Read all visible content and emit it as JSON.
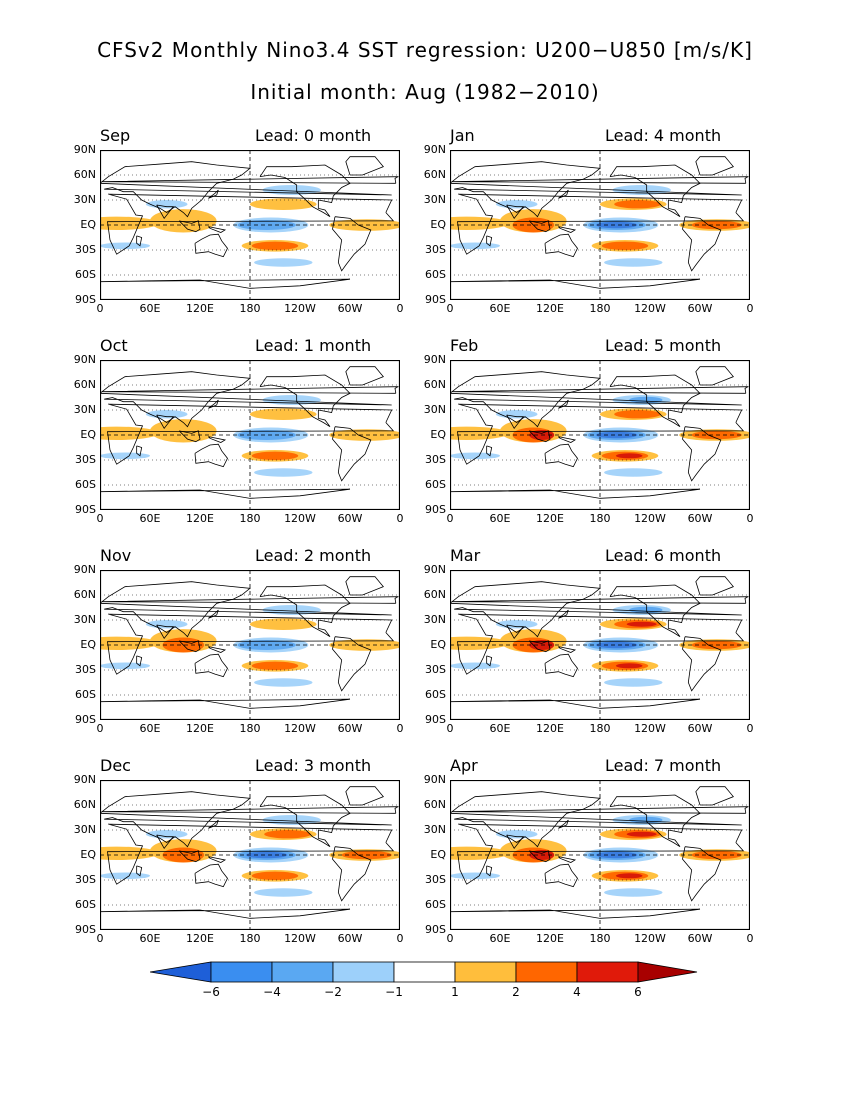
{
  "title": "CFSv2 Monthly Nino3.4 SST regression: U200−U850 [m/s/K]",
  "subtitle": "Initial month: Aug (1982−2010)",
  "lat_labels": [
    "90N",
    "60N",
    "30N",
    "EQ",
    "30S",
    "60S",
    "90S"
  ],
  "lon_labels": [
    "0",
    "60E",
    "120E",
    "180",
    "120W",
    "60W",
    "0"
  ],
  "panels": [
    {
      "month": "Sep",
      "lead": "Lead: 0 month",
      "strength": 1
    },
    {
      "month": "Jan",
      "lead": "Lead: 4 month",
      "strength": 2
    },
    {
      "month": "Oct",
      "lead": "Lead: 1 month",
      "strength": 1
    },
    {
      "month": "Feb",
      "lead": "Lead: 5 month",
      "strength": 3
    },
    {
      "month": "Nov",
      "lead": "Lead: 2 month",
      "strength": 1.5
    },
    {
      "month": "Mar",
      "lead": "Lead: 6 month",
      "strength": 4
    },
    {
      "month": "Dec",
      "lead": "Lead: 3 month",
      "strength": 2
    },
    {
      "month": "Apr",
      "lead": "Lead: 7 month",
      "strength": 3.5
    }
  ],
  "colorbar": {
    "labels": [
      "−6",
      "−4",
      "−2",
      "−1",
      "1",
      "2",
      "4",
      "6"
    ],
    "colors": [
      "#1e5fd8",
      "#3a8ef0",
      "#5aa8f2",
      "#9dd0fa",
      "#ffffff",
      "#ffbe3c",
      "#ff6600",
      "#e01a0a",
      "#a80000"
    ]
  },
  "colors": {
    "neg3": "#3a7de0",
    "neg2": "#5ea8f0",
    "neg1": "#a6d4fa",
    "pos1": "#ffc040",
    "pos2": "#ff6a00",
    "pos3": "#d81a08"
  }
}
